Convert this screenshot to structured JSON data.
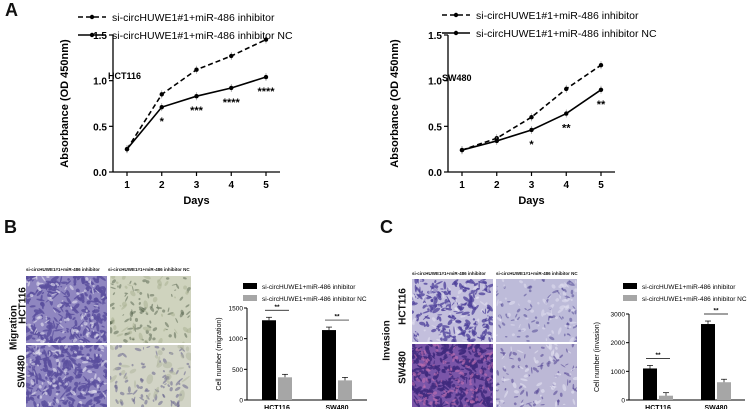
{
  "panels": {
    "a": {
      "letter": "A"
    },
    "b": {
      "letter": "B"
    },
    "c": {
      "letter": "C"
    }
  },
  "legend_common": {
    "inhibitor": "si-circHUWE1#1+miR-486 inhibitor",
    "inhibitor_nc": "si-circHUWE1#1+miR-486 inhibitor NC"
  },
  "panel_bc_legend": {
    "inhibitor": "si-circHUWE1+miR-486 inhibitor",
    "inhibitor_nc": "si-circHUWE1+miR-486 inhibitor NC"
  },
  "micro_headers": {
    "left": "si-circHUWE1#1+miR-486 inhibitor",
    "right": "si-circHUWE1#1+miR-486 inhibitor NC"
  },
  "row_labels": {
    "hct116": "HCT116",
    "sw480": "SW480",
    "migration": "Migration",
    "invasion": "Invasion"
  },
  "colors": {
    "micro_dark": "#5a4f9e",
    "micro_light": "#b9b7d6",
    "micro_pale": "#d6d8c8",
    "bar_black": "#000000",
    "bar_grey": "#a6a6a6"
  },
  "chart_data": [
    {
      "type": "line",
      "panel": "A-left",
      "annotation": "HCT116",
      "xlabel": "Days",
      "ylabel": "Absorbance (OD 450nm)",
      "x": [
        1,
        2,
        3,
        4,
        5
      ],
      "xticks": [
        "1",
        "2",
        "3",
        "4",
        "5"
      ],
      "ylim": [
        0.0,
        1.5
      ],
      "yticks": [
        "0.0",
        "0.5",
        "1.0",
        "1.5"
      ],
      "legend_position": "top",
      "series": [
        {
          "name": "si-circHUWE1#1+miR-486 inhibitor",
          "style": "dashed",
          "values": [
            0.25,
            0.85,
            1.12,
            1.27,
            1.45
          ]
        },
        {
          "name": "si-circHUWE1#1+miR-486 inhibitor NC",
          "style": "solid",
          "values": [
            0.25,
            0.71,
            0.83,
            0.92,
            1.04
          ]
        }
      ],
      "significance": [
        "",
        "*",
        "***",
        "****",
        "****"
      ]
    },
    {
      "type": "line",
      "panel": "A-right",
      "annotation": "SW480",
      "xlabel": "Days",
      "ylabel": "Absorbance (OD 450nm)",
      "x": [
        1,
        2,
        3,
        4,
        5
      ],
      "xticks": [
        "1",
        "2",
        "3",
        "4",
        "5"
      ],
      "ylim": [
        0.0,
        1.5
      ],
      "yticks": [
        "0.0",
        "0.5",
        "1.0",
        "1.5"
      ],
      "legend_position": "top",
      "series": [
        {
          "name": "si-circHUWE1#1+miR-486 inhibitor",
          "style": "dashed",
          "values": [
            0.24,
            0.37,
            0.6,
            0.91,
            1.17
          ]
        },
        {
          "name": "si-circHUWE1#1+miR-486 inhibitor NC",
          "style": "solid",
          "values": [
            0.24,
            0.34,
            0.46,
            0.64,
            0.9
          ]
        }
      ],
      "significance": [
        "",
        "",
        "*",
        "**",
        "**"
      ]
    },
    {
      "type": "bar",
      "panel": "B",
      "ylabel": "Cell number (migration)",
      "categories": [
        "HCT116",
        "SW480"
      ],
      "ylim": [
        0,
        1500
      ],
      "yticks": [
        "0",
        "500",
        "1000",
        "1500"
      ],
      "legend_position": "top",
      "series": [
        {
          "name": "si-circHUWE1+miR-486 inhibitor",
          "values": [
            1300,
            1140
          ]
        },
        {
          "name": "si-circHUWE1+miR-486 inhibitor NC",
          "values": [
            370,
            320
          ]
        }
      ],
      "significance": [
        "**",
        "**"
      ]
    },
    {
      "type": "bar",
      "panel": "C",
      "ylabel": "Cell number (invasion)",
      "categories": [
        "HCT116",
        "SW480"
      ],
      "ylim": [
        0,
        3000
      ],
      "yticks": [
        "0",
        "1000",
        "2000",
        "3000"
      ],
      "legend_position": "top",
      "series": [
        {
          "name": "si-circHUWE1+miR-486 inhibitor",
          "values": [
            1100,
            2650
          ]
        },
        {
          "name": "si-circHUWE1+miR-486 inhibitor NC",
          "values": [
            150,
            620
          ]
        }
      ],
      "significance": [
        "**",
        "**"
      ]
    }
  ]
}
